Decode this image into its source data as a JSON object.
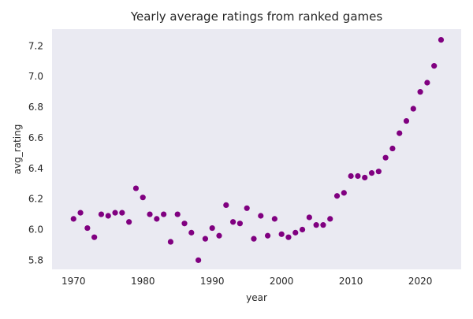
{
  "chart_data": {
    "type": "scatter",
    "title": "Yearly average ratings from ranked games",
    "xlabel": "year",
    "ylabel": "avg_rating",
    "xlim": [
      1966.9,
      2025.9
    ],
    "ylim": [
      5.74,
      7.31
    ],
    "xticks": [
      1970,
      1980,
      1990,
      2000,
      2010,
      2020
    ],
    "yticks": [
      5.8,
      6.0,
      6.2,
      6.4,
      6.6,
      6.8,
      7.0,
      7.2
    ],
    "ytick_labels": [
      "5.8",
      "6.0",
      "6.2",
      "6.4",
      "6.6",
      "6.8",
      "7.0",
      "7.2"
    ],
    "grid": false,
    "point_color": "#800080",
    "background_color": "#eaeaf2",
    "x": [
      1970,
      1971,
      1972,
      1973,
      1974,
      1975,
      1976,
      1977,
      1978,
      1979,
      1980,
      1981,
      1982,
      1983,
      1984,
      1985,
      1986,
      1987,
      1988,
      1989,
      1990,
      1991,
      1992,
      1993,
      1994,
      1995,
      1996,
      1997,
      1998,
      1999,
      2000,
      2001,
      2002,
      2003,
      2004,
      2005,
      2006,
      2007,
      2008,
      2009,
      2010,
      2011,
      2012,
      2013,
      2014,
      2015,
      2016,
      2017,
      2018,
      2019,
      2020,
      2021,
      2022,
      2023
    ],
    "y": [
      6.07,
      6.11,
      6.01,
      5.95,
      6.1,
      6.09,
      6.11,
      6.11,
      6.05,
      6.27,
      6.21,
      6.1,
      6.07,
      6.1,
      5.92,
      6.1,
      6.04,
      5.98,
      5.8,
      5.94,
      6.01,
      5.96,
      6.16,
      6.05,
      6.04,
      6.14,
      5.94,
      6.09,
      5.96,
      6.07,
      5.97,
      5.95,
      5.98,
      6.0,
      6.08,
      6.03,
      6.03,
      6.07,
      6.22,
      6.24,
      6.35,
      6.35,
      6.34,
      6.37,
      6.38,
      6.47,
      6.53,
      6.63,
      6.71,
      6.79,
      6.9,
      6.96,
      7.07,
      7.24
    ]
  }
}
